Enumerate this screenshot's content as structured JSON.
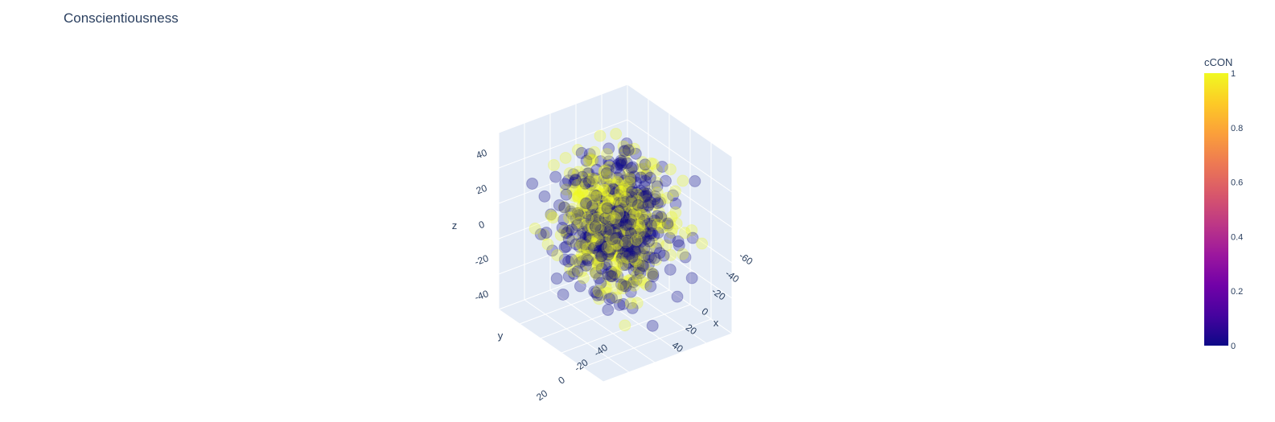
{
  "chart_data": {
    "type": "scatter",
    "title": "Conscientiousness",
    "subtype": "3d-scatter",
    "axes": {
      "x": {
        "label": "x",
        "ticks": [
          "-60",
          "-40",
          "-20",
          "0",
          "20",
          "40"
        ]
      },
      "y": {
        "label": "y",
        "ticks": [
          "-40",
          "-20",
          "0",
          "20"
        ]
      },
      "z": {
        "label": "z",
        "ticks": [
          "40",
          "20",
          "0",
          "-20",
          "-40"
        ]
      }
    },
    "colorbar": {
      "title": "cCON",
      "ticks": [
        "1",
        "0.8",
        "0.6",
        "0.4",
        "0.2",
        "0"
      ],
      "range": [
        0,
        1
      ],
      "colors": [
        "#0d0887",
        "#46039f",
        "#7201a8",
        "#9c179e",
        "#bd3786",
        "#d8576b",
        "#ed7953",
        "#fb9f3a",
        "#fdca26",
        "#f0f921"
      ]
    },
    "marker_colors": {
      "low": "#0d0887",
      "high": "#f0f921"
    },
    "marker_opacity": 0.3,
    "background_color": "#e5ecf6",
    "grid_color": "#ffffff"
  }
}
